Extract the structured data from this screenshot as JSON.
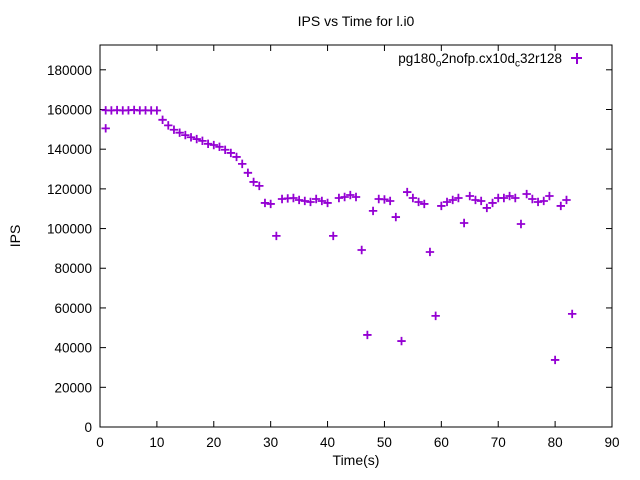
{
  "chart_data": {
    "type": "scatter",
    "title": "IPS vs Time for l.i0",
    "xlabel": "Time(s)",
    "ylabel": "IPS",
    "xlim": [
      0,
      90
    ],
    "ylim": [
      0,
      192500
    ],
    "x_ticks": [
      0,
      10,
      20,
      30,
      40,
      50,
      60,
      70,
      80,
      90
    ],
    "y_ticks": [
      0,
      20000,
      40000,
      60000,
      80000,
      100000,
      120000,
      140000,
      160000,
      180000
    ],
    "grid": false,
    "legend_position": "top-right",
    "marker": "plus",
    "marker_color": "#9400d3",
    "series": [
      {
        "name": "pg180o2nofp.cx10dc32r128",
        "name_parts": [
          "pg180",
          "o",
          "2nofp.cx10d",
          "c",
          "32r128"
        ],
        "points": [
          [
            1,
            150500
          ],
          [
            1,
            159600
          ],
          [
            2,
            159500
          ],
          [
            3,
            159700
          ],
          [
            4,
            159500
          ],
          [
            5,
            159600
          ],
          [
            6,
            159800
          ],
          [
            7,
            159500
          ],
          [
            8,
            159600
          ],
          [
            9,
            159500
          ],
          [
            10,
            159500
          ],
          [
            11,
            154800
          ],
          [
            12,
            152000
          ],
          [
            13,
            149800
          ],
          [
            14,
            148300
          ],
          [
            15,
            147100
          ],
          [
            16,
            146000
          ],
          [
            17,
            145100
          ],
          [
            18,
            144200
          ],
          [
            19,
            142700
          ],
          [
            20,
            142100
          ],
          [
            21,
            141200
          ],
          [
            22,
            139700
          ],
          [
            23,
            138100
          ],
          [
            24,
            136100
          ],
          [
            25,
            132600
          ],
          [
            26,
            128100
          ],
          [
            27,
            123500
          ],
          [
            28,
            121500
          ],
          [
            29,
            112900
          ],
          [
            30,
            112400
          ],
          [
            31,
            96300
          ],
          [
            32,
            114900
          ],
          [
            33,
            115200
          ],
          [
            34,
            115400
          ],
          [
            35,
            114400
          ],
          [
            36,
            113900
          ],
          [
            37,
            113400
          ],
          [
            38,
            114900
          ],
          [
            39,
            113900
          ],
          [
            40,
            112900
          ],
          [
            41,
            96300
          ],
          [
            42,
            115400
          ],
          [
            43,
            115900
          ],
          [
            44,
            116900
          ],
          [
            45,
            115900
          ],
          [
            46,
            89200
          ],
          [
            47,
            46400
          ],
          [
            48,
            108900
          ],
          [
            49,
            114900
          ],
          [
            50,
            114700
          ],
          [
            51,
            113900
          ],
          [
            52,
            105800
          ],
          [
            53,
            43300
          ],
          [
            54,
            118400
          ],
          [
            55,
            115400
          ],
          [
            56,
            113400
          ],
          [
            57,
            112400
          ],
          [
            58,
            88200
          ],
          [
            59,
            56000
          ],
          [
            60,
            111400
          ],
          [
            61,
            113400
          ],
          [
            62,
            114400
          ],
          [
            63,
            115400
          ],
          [
            64,
            102800
          ],
          [
            65,
            116400
          ],
          [
            66,
            114400
          ],
          [
            67,
            113900
          ],
          [
            68,
            110400
          ],
          [
            69,
            112900
          ],
          [
            70,
            115400
          ],
          [
            71,
            115400
          ],
          [
            72,
            116400
          ],
          [
            73,
            115400
          ],
          [
            74,
            102300
          ],
          [
            75,
            117400
          ],
          [
            76,
            114900
          ],
          [
            77,
            113400
          ],
          [
            78,
            113900
          ],
          [
            79,
            116400
          ],
          [
            80,
            33800
          ],
          [
            81,
            111400
          ],
          [
            82,
            114400
          ],
          [
            83,
            57000
          ]
        ]
      }
    ]
  },
  "colors": {
    "background": "#ffffff",
    "axis": "#000000",
    "text": "#000000",
    "marker": "#9400d3"
  }
}
